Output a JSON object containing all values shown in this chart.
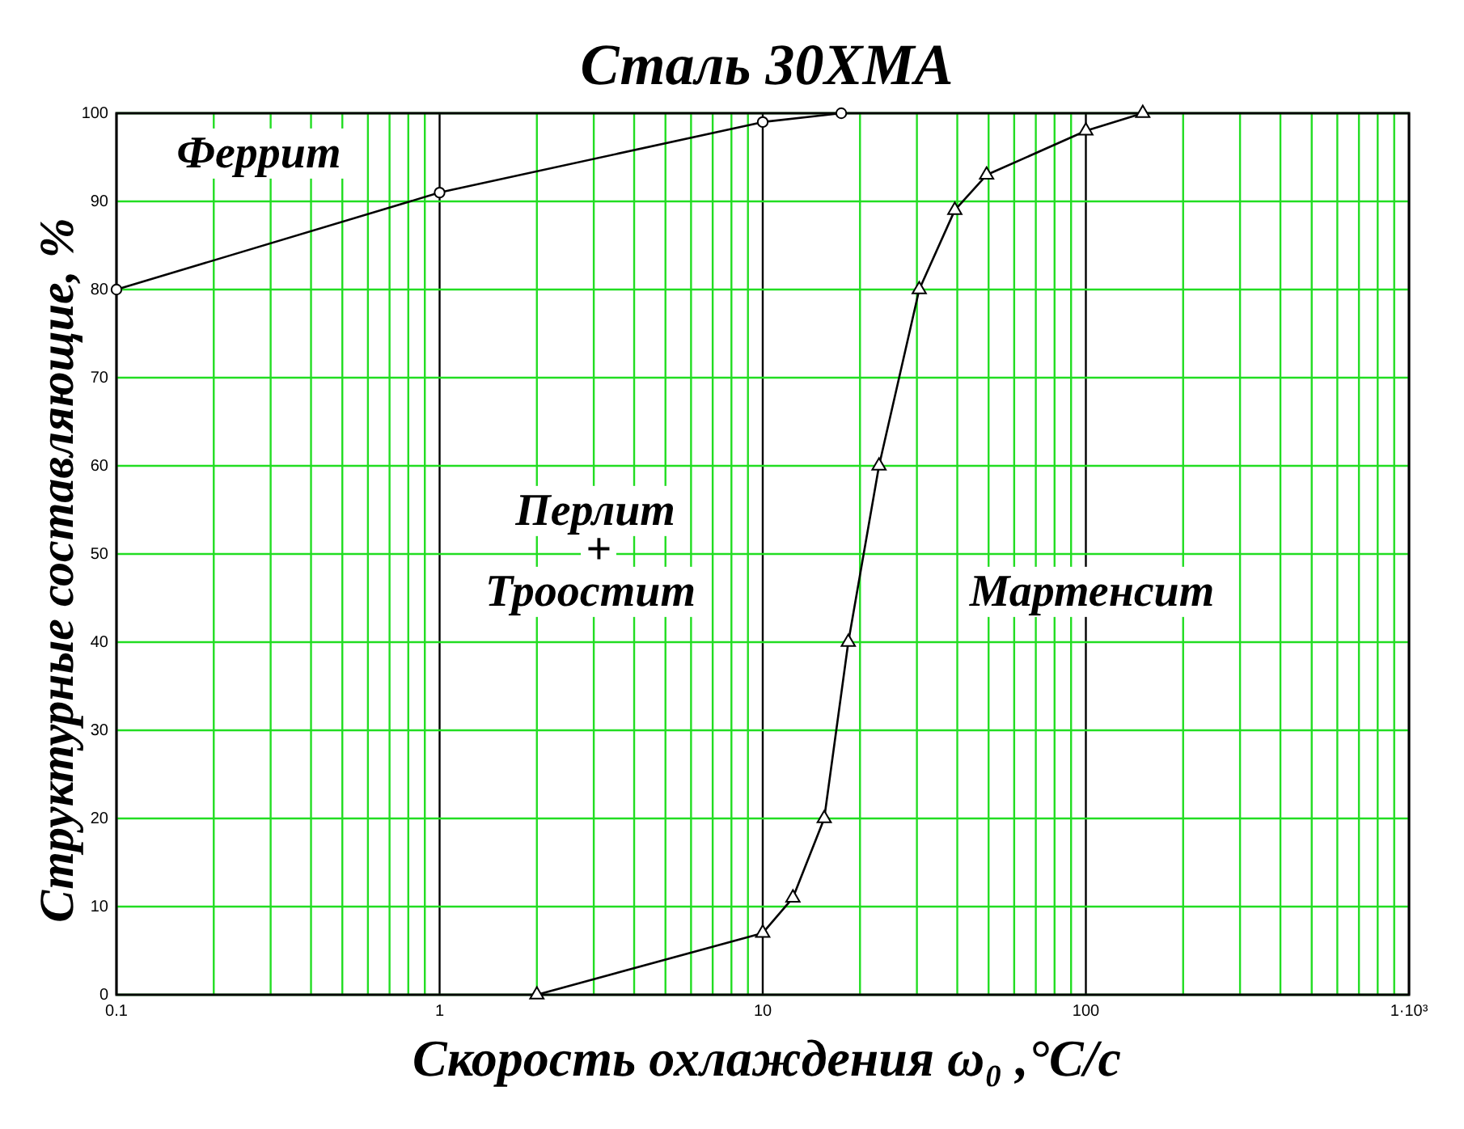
{
  "chart_data": {
    "type": "line",
    "title": "Сталь 30ХМА",
    "xlabel": "Скорость охлаждения ω₀ ,°C/c",
    "ylabel": "Структурные составляющие, %",
    "log": "x",
    "grid": true,
    "line_style": "solid",
    "xlim": [
      0.1,
      1000
    ],
    "ylim": [
      0,
      100
    ],
    "xticks": [
      0.1,
      {
        "value": 0.2,
        "label": null
      },
      {
        "value": 0.3,
        "label": null
      },
      {
        "value": 0.4,
        "label": null
      },
      {
        "value": 0.5,
        "label": null
      },
      {
        "value": 0.6,
        "label": null
      },
      {
        "value": 0.7,
        "label": null
      },
      {
        "value": 0.8,
        "label": null
      },
      {
        "value": 0.9,
        "label": null
      },
      1,
      {
        "value": 2,
        "label": null
      },
      {
        "value": 3,
        "label": null
      },
      {
        "value": 4,
        "label": null
      },
      {
        "value": 5,
        "label": null
      },
      {
        "value": 6,
        "label": null
      },
      {
        "value": 7,
        "label": null
      },
      {
        "value": 8,
        "label": null
      },
      {
        "value": 9,
        "label": null
      },
      10,
      {
        "value": 20,
        "label": null
      },
      {
        "value": 30,
        "label": null
      },
      {
        "value": 40,
        "label": null
      },
      {
        "value": 50,
        "label": null
      },
      {
        "value": 60,
        "label": null
      },
      {
        "value": 70,
        "label": null
      },
      {
        "value": 80,
        "label": null
      },
      {
        "value": 90,
        "label": null
      },
      100,
      {
        "value": 200,
        "label": null
      },
      {
        "value": 300,
        "label": null
      },
      {
        "value": 400,
        "label": null
      },
      {
        "value": 500,
        "label": null
      },
      {
        "value": 600,
        "label": null
      },
      {
        "value": 700,
        "label": null
      },
      {
        "value": 800,
        "label": null
      },
      {
        "value": 900,
        "label": null
      },
      {
        "value": 1000,
        "label": "1·10³"
      }
    ],
    "yticks": [
      0,
      10,
      20,
      30,
      40,
      50,
      60,
      70,
      80,
      90,
      100
    ],
    "annotations": [
      "Феррит",
      "Перлит",
      "+",
      "Троостит",
      "Мартенсит"
    ],
    "series": [
      {
        "color": "#000000",
        "marker": "circle",
        "x": [
          0.1,
          1,
          10,
          17.5
        ],
        "values": [
          80,
          91,
          99,
          100
        ]
      },
      {
        "color": "#000000",
        "marker": "triangle",
        "x": [
          2,
          10,
          12.4,
          15.5,
          18.4,
          22.9,
          30.5,
          39.3,
          49.3,
          100,
          150
        ],
        "values": [
          0,
          7,
          11,
          20,
          40,
          60,
          80,
          89,
          93,
          98,
          100
        ]
      }
    ]
  }
}
